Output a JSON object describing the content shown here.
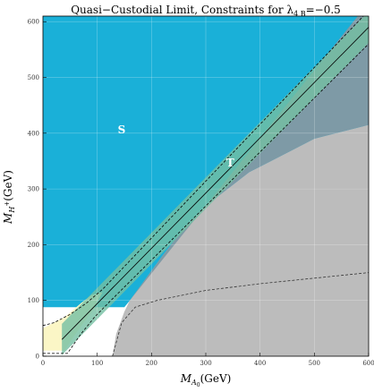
{
  "chart_data": {
    "type": "area",
    "title": "Quasi−Custodial Limit, Constraints for λ",
    "title_subscript": "4 B",
    "title_suffix": "=−0.5",
    "xlabel_main": "M",
    "xlabel_sub": "A",
    "xlabel_subsub": "0",
    "xlabel_unit": "(GeV)",
    "ylabel_main": "M",
    "ylabel_sub": "H",
    "ylabel_sup": "+",
    "ylabel_unit": "(GeV)",
    "xlim": [
      0,
      600
    ],
    "ylim": [
      0,
      610
    ],
    "xticks": [
      0,
      100,
      200,
      300,
      400,
      500,
      600
    ],
    "yticks": [
      0,
      100,
      200,
      300,
      400,
      500,
      600
    ],
    "grid": true,
    "region_labels": [
      {
        "text": "S",
        "x": 145,
        "y": 400
      },
      {
        "text": "T",
        "x": 345,
        "y": 340
      }
    ],
    "regions": [
      {
        "name": "S",
        "color": "#1ab0d8",
        "points": [
          [
            0,
            610
          ],
          [
            580,
            610
          ],
          [
            600,
            590
          ],
          [
            600,
            610
          ]
        ]
      },
      {
        "name": "T",
        "color": "#74bfa3"
      },
      {
        "name": "excluded",
        "color": "#bcbcbc"
      }
    ],
    "S_region": {
      "color": "#1ab0d8",
      "points": [
        [
          0,
          88
        ],
        [
          150,
          88
        ],
        [
          160,
          100
        ],
        [
          190,
          140
        ],
        [
          220,
          180
        ],
        [
          260,
          230
        ],
        [
          300,
          270
        ],
        [
          340,
          300
        ],
        [
          380,
          330
        ],
        [
          420,
          350
        ],
        [
          460,
          370
        ],
        [
          500,
          390
        ],
        [
          540,
          400
        ],
        [
          580,
          410
        ],
        [
          600,
          415
        ],
        [
          600,
          610
        ],
        [
          0,
          610
        ]
      ]
    },
    "gray_region": {
      "color": "#bcbcbc",
      "points": [
        [
          128,
          0
        ],
        [
          135,
          40
        ],
        [
          150,
          80
        ],
        [
          170,
          120
        ],
        [
          200,
          165
        ],
        [
          240,
          215
        ],
        [
          280,
          255
        ],
        [
          320,
          290
        ],
        [
          360,
          320
        ],
        [
          400,
          345
        ],
        [
          440,
          365
        ],
        [
          480,
          385
        ],
        [
          520,
          398
        ],
        [
          560,
          408
        ],
        [
          600,
          415
        ],
        [
          600,
          0
        ]
      ]
    },
    "T_band": {
      "color": "#74bfa3",
      "center": [
        [
          35,
          30
        ],
        [
          600,
          590
        ]
      ],
      "halfwidth_y": 28
    },
    "yellow_region": {
      "color": "#fbf6c6",
      "points": [
        [
          0,
          10
        ],
        [
          0,
          50
        ],
        [
          40,
          70
        ],
        [
          70,
          95
        ],
        [
          90,
          110
        ],
        [
          110,
          115
        ],
        [
          90,
          80
        ],
        [
          60,
          40
        ],
        [
          40,
          10
        ]
      ]
    },
    "lower_curve": [
      [
        128,
        0
      ],
      [
        145,
        60
      ],
      [
        170,
        88
      ],
      [
        210,
        100
      ],
      [
        300,
        118
      ],
      [
        400,
        130
      ],
      [
        500,
        140
      ],
      [
        600,
        150
      ]
    ],
    "dashed_band": {
      "upper": [
        [
          0,
          55
        ],
        [
          20,
          60
        ],
        [
          50,
          75
        ],
        [
          80,
          95
        ],
        [
          110,
          120
        ],
        [
          600,
          620
        ]
      ],
      "lower": [
        [
          0,
          5
        ],
        [
          45,
          5
        ],
        [
          70,
          40
        ],
        [
          95,
          70
        ],
        [
          120,
          95
        ],
        [
          600,
          560
        ]
      ]
    }
  }
}
